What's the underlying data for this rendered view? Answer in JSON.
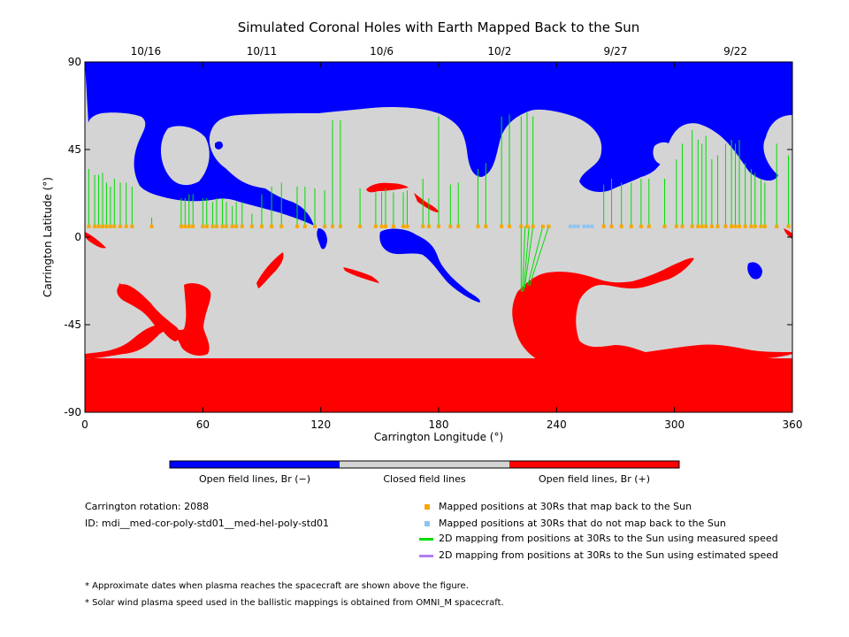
{
  "chart_data": {
    "type": "map",
    "title": "Simulated Coronal Holes with Earth Mapped Back to the Sun",
    "xlabel": "Carrington Longitude (°)",
    "ylabel": "Carrington Latitude (°)",
    "xlim": [
      0,
      360
    ],
    "ylim": [
      -90,
      90
    ],
    "xticks": [
      0,
      60,
      120,
      180,
      240,
      300,
      360
    ],
    "yticks": [
      90,
      45,
      0,
      -45,
      -90
    ],
    "top_dates": [
      {
        "label": "10/16",
        "lon": 31
      },
      {
        "label": "10/11",
        "lon": 90
      },
      {
        "label": "10/6",
        "lon": 151
      },
      {
        "label": "10/2",
        "lon": 211
      },
      {
        "label": "9/27",
        "lon": 270
      },
      {
        "label": "9/22",
        "lon": 331
      }
    ],
    "colorbar": [
      {
        "label": "Open field lines, Br (−)",
        "color": "#0000ff"
      },
      {
        "label": "Closed field lines",
        "color": "#d4d4d4"
      },
      {
        "label": "Open field lines, Br (+)",
        "color": "#ff0000"
      }
    ],
    "footpoint_lat": 5.5,
    "mapped_lons": [
      2,
      5,
      7,
      9,
      11,
      13,
      15,
      18,
      21,
      24,
      34,
      49,
      51,
      53,
      55,
      60,
      62,
      65,
      67,
      70,
      72,
      75,
      77,
      80,
      85,
      90,
      95,
      100,
      108,
      112,
      117,
      122,
      126,
      130,
      140,
      148,
      151,
      153,
      157,
      162,
      164,
      172,
      175,
      180,
      186,
      190,
      200,
      204,
      212,
      216,
      222,
      225,
      228,
      233,
      236,
      264,
      268,
      273,
      278,
      283,
      287,
      295,
      301,
      304,
      309,
      312,
      314,
      316,
      319,
      322,
      326,
      329,
      331,
      333,
      336,
      339,
      341,
      344,
      346,
      352,
      358
    ],
    "unmapped_lons": [
      247,
      249,
      251,
      254,
      256,
      258
    ],
    "measured_lines": [
      [
        2,
        35
      ],
      [
        5,
        32
      ],
      [
        7,
        32
      ],
      [
        9,
        33
      ],
      [
        11,
        28
      ],
      [
        13,
        26
      ],
      [
        15,
        30
      ],
      [
        18,
        28
      ],
      [
        21,
        28
      ],
      [
        24,
        26
      ],
      [
        34,
        10
      ],
      [
        49,
        20
      ],
      [
        51,
        20
      ],
      [
        53,
        22
      ],
      [
        55,
        22
      ],
      [
        60,
        20
      ],
      [
        62,
        20
      ],
      [
        65,
        18
      ],
      [
        67,
        20
      ],
      [
        70,
        20
      ],
      [
        72,
        18
      ],
      [
        75,
        16
      ],
      [
        77,
        18
      ],
      [
        80,
        18
      ],
      [
        85,
        12
      ],
      [
        90,
        22
      ],
      [
        95,
        26
      ],
      [
        100,
        28
      ],
      [
        108,
        26
      ],
      [
        112,
        26
      ],
      [
        117,
        25
      ],
      [
        122,
        24
      ],
      [
        126,
        60
      ],
      [
        130,
        60
      ],
      [
        140,
        25
      ],
      [
        148,
        23
      ],
      [
        151,
        23
      ],
      [
        153,
        25
      ],
      [
        157,
        23
      ],
      [
        162,
        23
      ],
      [
        164,
        24
      ],
      [
        172,
        30
      ],
      [
        175,
        20
      ],
      [
        180,
        62
      ],
      [
        186,
        27
      ],
      [
        190,
        28
      ],
      [
        200,
        35
      ],
      [
        204,
        38
      ],
      [
        212,
        62
      ],
      [
        216,
        63
      ],
      [
        222,
        62
      ],
      [
        225,
        64
      ],
      [
        228,
        62
      ],
      [
        264,
        27
      ],
      [
        268,
        30
      ],
      [
        273,
        28
      ],
      [
        278,
        28
      ],
      [
        283,
        30
      ],
      [
        287,
        30
      ],
      [
        295,
        30
      ],
      [
        301,
        40
      ],
      [
        304,
        48
      ],
      [
        309,
        55
      ],
      [
        312,
        50
      ],
      [
        314,
        48
      ],
      [
        316,
        52
      ],
      [
        319,
        40
      ],
      [
        322,
        42
      ],
      [
        326,
        48
      ],
      [
        329,
        50
      ],
      [
        331,
        48
      ],
      [
        333,
        50
      ],
      [
        336,
        38
      ],
      [
        339,
        35
      ],
      [
        341,
        33
      ],
      [
        344,
        30
      ],
      [
        346,
        28
      ],
      [
        352,
        48
      ],
      [
        358,
        42
      ]
    ],
    "measured_lines_south": [
      [
        222,
        -28
      ],
      [
        224,
        -28
      ],
      [
        226,
        -28
      ],
      [
        228,
        -26
      ],
      [
        233,
        -25
      ],
      [
        236,
        -25
      ]
    ],
    "carrington_rotation": "Carrington rotation: 2088",
    "model_id": "ID: mdi__med-cor-poly-std01__med-hel-poly-std01",
    "legend": {
      "mapped": "Mapped positions at 30Rs that map back to the Sun",
      "unmapped": "Mapped positions at 30Rs that do not map back to the Sun",
      "measured": "2D mapping from positions at 30Rs to the Sun using measured speed",
      "estimated": "2D mapping from positions at 30Rs to the Sun using estimated speed"
    },
    "colors": {
      "closed": "#d4d4d4",
      "open_negative": "#0000ff",
      "open_positive": "#ff0000",
      "mapped": "#f5a800",
      "unmapped": "#8ec4f2",
      "measured": "#00dd00",
      "estimated": "#b080f0"
    },
    "notes": [
      "* Approximate dates when plasma reaches the spacecraft are shown above the figure.",
      "* Solar wind plasma speed used in the ballistic mappings is obtained from OMNI_M spacecraft."
    ]
  }
}
